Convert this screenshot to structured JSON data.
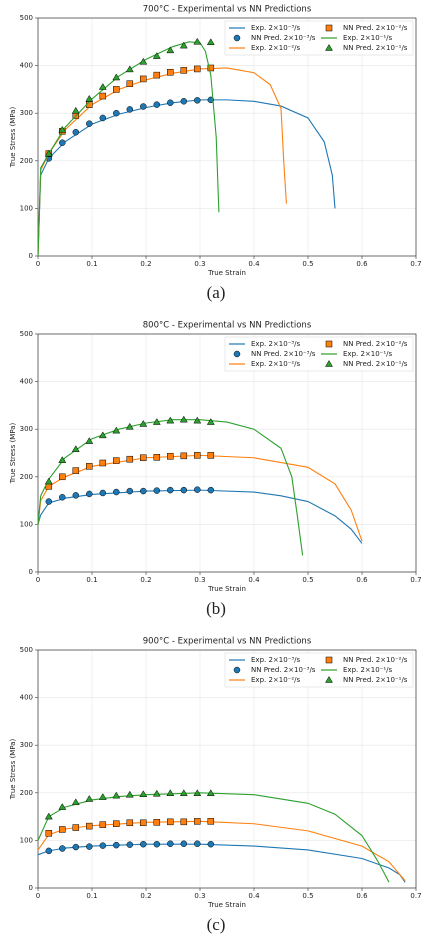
{
  "chart_data": [
    {
      "type": "line",
      "title": "700°C - Experimental vs NN Predictions",
      "xlabel": "True Strain",
      "ylabel": "True Stress (MPa)",
      "caption": "(a)",
      "xlim": [
        0,
        0.7
      ],
      "ylim": [
        0,
        500
      ],
      "xticks": [
        0,
        0.1,
        0.2,
        0.3,
        0.4,
        0.5,
        0.6,
        0.7
      ],
      "yticks": [
        0,
        100,
        200,
        300,
        400,
        500
      ],
      "grid": true,
      "legend": "upper right",
      "series": [
        {
          "name": "Exp. 2×10⁻³/s",
          "color": "#1f77b4",
          "x": [
            0,
            0.005,
            0.02,
            0.05,
            0.1,
            0.15,
            0.2,
            0.25,
            0.3,
            0.35,
            0.4,
            0.45,
            0.5,
            0.53,
            0.545,
            0.55
          ],
          "values": [
            0,
            170,
            205,
            240,
            277,
            298,
            312,
            322,
            328,
            328,
            325,
            315,
            290,
            240,
            170,
            100
          ]
        },
        {
          "name": "NN Pred. 2×10⁻³/s",
          "color": "#1f77b4",
          "marker": "circle",
          "x": [
            0.02,
            0.045,
            0.07,
            0.095,
            0.12,
            0.145,
            0.17,
            0.195,
            0.22,
            0.245,
            0.27,
            0.295,
            0.32
          ],
          "values": [
            205,
            238,
            260,
            278,
            290,
            300,
            308,
            314,
            318,
            322,
            325,
            327,
            328
          ]
        },
        {
          "name": "Exp. 2×10⁻²/s",
          "color": "#ff7f0e",
          "x": [
            0,
            0.005,
            0.02,
            0.05,
            0.1,
            0.15,
            0.2,
            0.25,
            0.3,
            0.35,
            0.4,
            0.43,
            0.45,
            0.455,
            0.46
          ],
          "values": [
            0,
            180,
            215,
            265,
            318,
            350,
            370,
            384,
            393,
            395,
            385,
            360,
            310,
            200,
            110
          ]
        },
        {
          "name": "NN Pred. 2×10⁻²/s",
          "color": "#ff7f0e",
          "marker": "square",
          "x": [
            0.02,
            0.045,
            0.07,
            0.095,
            0.12,
            0.145,
            0.17,
            0.195,
            0.22,
            0.245,
            0.27,
            0.295,
            0.32
          ],
          "values": [
            215,
            262,
            295,
            318,
            336,
            350,
            362,
            372,
            380,
            386,
            390,
            393,
            395
          ]
        },
        {
          "name": "Exp. 2×10⁻¹/s",
          "color": "#2ca02c",
          "x": [
            0,
            0.005,
            0.02,
            0.05,
            0.1,
            0.15,
            0.2,
            0.25,
            0.28,
            0.3,
            0.31,
            0.32,
            0.33,
            0.335
          ],
          "values": [
            0,
            185,
            215,
            270,
            330,
            378,
            413,
            440,
            450,
            448,
            430,
            380,
            250,
            92
          ]
        },
        {
          "name": "NN Pred. 2×10⁻¹/s",
          "color": "#2ca02c",
          "marker": "triangle",
          "x": [
            0.02,
            0.045,
            0.07,
            0.095,
            0.12,
            0.145,
            0.17,
            0.195,
            0.22,
            0.245,
            0.27,
            0.295,
            0.32
          ],
          "values": [
            215,
            265,
            305,
            330,
            355,
            375,
            392,
            408,
            420,
            432,
            442,
            450,
            449
          ]
        }
      ]
    },
    {
      "type": "line",
      "title": "800°C - Experimental vs NN Predictions",
      "xlabel": "True Strain",
      "ylabel": "True Stress (MPa)",
      "caption": "(b)",
      "xlim": [
        0,
        0.7
      ],
      "ylim": [
        0,
        500
      ],
      "xticks": [
        0,
        0.1,
        0.2,
        0.3,
        0.4,
        0.5,
        0.6,
        0.7
      ],
      "yticks": [
        0,
        100,
        200,
        300,
        400,
        500
      ],
      "grid": true,
      "legend": "upper right",
      "series": [
        {
          "name": "Exp. 2×10⁻³/s",
          "color": "#1f77b4",
          "x": [
            0,
            0.005,
            0.02,
            0.05,
            0.1,
            0.2,
            0.3,
            0.4,
            0.45,
            0.5,
            0.55,
            0.58,
            0.6
          ],
          "values": [
            100,
            120,
            145,
            155,
            163,
            170,
            172,
            168,
            160,
            148,
            118,
            90,
            60
          ]
        },
        {
          "name": "NN Pred. 2×10⁻³/s",
          "color": "#1f77b4",
          "marker": "circle",
          "x": [
            0.02,
            0.045,
            0.07,
            0.095,
            0.12,
            0.145,
            0.17,
            0.195,
            0.22,
            0.245,
            0.27,
            0.295,
            0.32
          ],
          "values": [
            148,
            157,
            161,
            164,
            166,
            168,
            170,
            170,
            171,
            172,
            172,
            173,
            172
          ]
        },
        {
          "name": "Exp. 2×10⁻²/s",
          "color": "#ff7f0e",
          "x": [
            0,
            0.005,
            0.02,
            0.05,
            0.1,
            0.2,
            0.3,
            0.4,
            0.5,
            0.55,
            0.58,
            0.6
          ],
          "values": [
            100,
            150,
            180,
            200,
            222,
            240,
            245,
            240,
            220,
            185,
            130,
            65
          ]
        },
        {
          "name": "NN Pred. 2×10⁻²/s",
          "color": "#ff7f0e",
          "marker": "square",
          "x": [
            0.02,
            0.045,
            0.07,
            0.095,
            0.12,
            0.145,
            0.17,
            0.195,
            0.22,
            0.245,
            0.27,
            0.295,
            0.32
          ],
          "values": [
            180,
            200,
            213,
            222,
            229,
            234,
            237,
            240,
            241,
            243,
            244,
            245,
            245
          ]
        },
        {
          "name": "Exp. 2×10⁻¹/s",
          "color": "#2ca02c",
          "x": [
            0,
            0.005,
            0.02,
            0.05,
            0.1,
            0.15,
            0.2,
            0.25,
            0.3,
            0.35,
            0.4,
            0.45,
            0.47,
            0.48,
            0.49
          ],
          "values": [
            100,
            160,
            195,
            240,
            280,
            300,
            313,
            320,
            320,
            315,
            300,
            260,
            200,
            120,
            35
          ]
        },
        {
          "name": "NN Pred. 2×10⁻¹/s",
          "color": "#2ca02c",
          "marker": "triangle",
          "x": [
            0.02,
            0.045,
            0.07,
            0.095,
            0.12,
            0.145,
            0.17,
            0.195,
            0.22,
            0.245,
            0.27,
            0.295,
            0.32
          ],
          "values": [
            190,
            235,
            258,
            275,
            287,
            297,
            305,
            311,
            315,
            318,
            320,
            318,
            315
          ]
        }
      ]
    },
    {
      "type": "line",
      "title": "900°C - Experimental vs NN Predictions",
      "xlabel": "True Strain",
      "ylabel": "True Stress (MPa)",
      "caption": "(c)",
      "xlim": [
        0,
        0.7
      ],
      "ylim": [
        0,
        500
      ],
      "xticks": [
        0,
        0.1,
        0.2,
        0.3,
        0.4,
        0.5,
        0.6,
        0.7
      ],
      "yticks": [
        0,
        100,
        200,
        300,
        400,
        500
      ],
      "grid": true,
      "legend": "upper right",
      "series": [
        {
          "name": "Exp. 2×10⁻³/s",
          "color": "#1f77b4",
          "x": [
            0,
            0.02,
            0.05,
            0.1,
            0.2,
            0.3,
            0.4,
            0.5,
            0.6,
            0.65,
            0.67,
            0.68
          ],
          "values": [
            70,
            78,
            84,
            88,
            92,
            92,
            88,
            80,
            62,
            42,
            28,
            12
          ]
        },
        {
          "name": "NN Pred. 2×10⁻³/s",
          "color": "#1f77b4",
          "marker": "circle",
          "x": [
            0.02,
            0.045,
            0.07,
            0.095,
            0.12,
            0.145,
            0.17,
            0.195,
            0.22,
            0.245,
            0.27,
            0.295,
            0.32
          ],
          "values": [
            78,
            83,
            86,
            87,
            89,
            90,
            91,
            92,
            92,
            93,
            93,
            93,
            92
          ]
        },
        {
          "name": "Exp. 2×10⁻²/s",
          "color": "#ff7f0e",
          "x": [
            0,
            0.02,
            0.05,
            0.1,
            0.2,
            0.3,
            0.4,
            0.5,
            0.6,
            0.65,
            0.68
          ],
          "values": [
            80,
            112,
            124,
            131,
            138,
            140,
            135,
            120,
            88,
            55,
            15
          ]
        },
        {
          "name": "NN Pred. 2×10⁻²/s",
          "color": "#ff7f0e",
          "marker": "square",
          "x": [
            0.02,
            0.045,
            0.07,
            0.095,
            0.12,
            0.145,
            0.17,
            0.195,
            0.22,
            0.245,
            0.27,
            0.295,
            0.32
          ],
          "values": [
            115,
            123,
            127,
            130,
            133,
            135,
            137,
            137,
            138,
            139,
            139,
            140,
            140
          ]
        },
        {
          "name": "Exp. 2×10⁻¹/s",
          "color": "#2ca02c",
          "x": [
            0,
            0.02,
            0.05,
            0.1,
            0.15,
            0.2,
            0.3,
            0.4,
            0.5,
            0.55,
            0.6,
            0.63,
            0.65
          ],
          "values": [
            100,
            150,
            170,
            185,
            192,
            196,
            200,
            196,
            178,
            155,
            110,
            55,
            12
          ]
        },
        {
          "name": "NN Pred. 2×10⁻¹/s",
          "color": "#2ca02c",
          "marker": "triangle",
          "x": [
            0.02,
            0.045,
            0.07,
            0.095,
            0.12,
            0.145,
            0.17,
            0.195,
            0.22,
            0.245,
            0.27,
            0.295,
            0.32
          ],
          "values": [
            150,
            170,
            180,
            187,
            191,
            194,
            196,
            197,
            198,
            199,
            199,
            199,
            199
          ]
        }
      ]
    }
  ]
}
